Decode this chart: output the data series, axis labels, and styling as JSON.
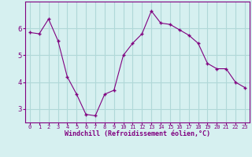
{
  "x": [
    0,
    1,
    2,
    3,
    4,
    5,
    6,
    7,
    8,
    9,
    10,
    11,
    12,
    13,
    14,
    15,
    16,
    17,
    18,
    19,
    20,
    21,
    22,
    23
  ],
  "y": [
    5.85,
    5.8,
    6.35,
    5.55,
    4.2,
    3.55,
    2.8,
    2.75,
    3.55,
    3.7,
    5.0,
    5.45,
    5.8,
    6.65,
    6.2,
    6.15,
    5.95,
    5.75,
    5.45,
    4.7,
    4.5,
    4.5,
    4.0,
    3.8
  ],
  "line_color": "#800080",
  "marker": "+",
  "bg_color": "#d6f0f0",
  "grid_color": "#b0d8d8",
  "xlabel": "Windchill (Refroidissement éolien,°C)",
  "xlabel_color": "#800080",
  "tick_color": "#800080",
  "ylim": [
    2.5,
    7.0
  ],
  "xlim": [
    -0.5,
    23.5
  ],
  "yticks": [
    3,
    4,
    5,
    6
  ],
  "xticks": [
    0,
    1,
    2,
    3,
    4,
    5,
    6,
    7,
    8,
    9,
    10,
    11,
    12,
    13,
    14,
    15,
    16,
    17,
    18,
    19,
    20,
    21,
    22,
    23
  ],
  "spine_color": "#800080"
}
